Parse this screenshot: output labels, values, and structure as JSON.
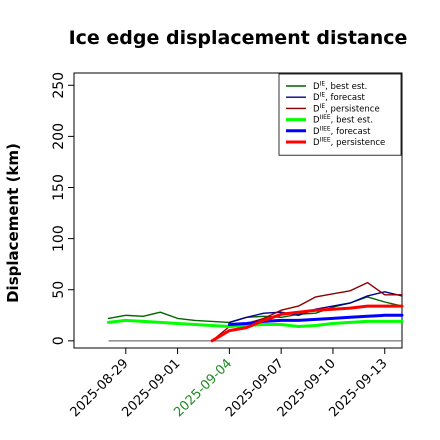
{
  "chart_data": {
    "type": "line",
    "title": "Ice edge displacement distance",
    "ylabel": "Displacement (km)",
    "xlabel": "",
    "ylim": [
      -7,
      262
    ],
    "yticks": [
      0,
      50,
      100,
      150,
      200,
      250
    ],
    "xdate_range": [
      "2025-08-26",
      "2025-09-14"
    ],
    "xticks": [
      {
        "label": "2025-08-29",
        "color": "#000000"
      },
      {
        "label": "2025-09-01",
        "color": "#000000"
      },
      {
        "label": "2025-09-04",
        "color": "#228b22"
      },
      {
        "label": "2025-09-07",
        "color": "#000000"
      },
      {
        "label": "2025-09-10",
        "color": "#000000"
      },
      {
        "label": "2025-09-13",
        "color": "#000000"
      }
    ],
    "grid": false,
    "legend_position": "top-right",
    "reference_line": {
      "y": 0,
      "x_start": "2025-08-28",
      "x_end": "2025-09-14",
      "color": "#555555"
    },
    "series": [
      {
        "name_main": "D",
        "name_sup": "IE",
        "name_rest": ", best est.",
        "color": "#006400",
        "width": 1.4,
        "x": [
          "2025-08-28",
          "2025-08-29",
          "2025-08-30",
          "2025-08-31",
          "2025-09-01",
          "2025-09-02",
          "2025-09-03",
          "2025-09-04",
          "2025-09-05",
          "2025-09-06",
          "2025-09-07",
          "2025-09-08",
          "2025-09-09",
          "2025-09-10",
          "2025-09-11",
          "2025-09-12",
          "2025-09-13",
          "2025-09-14"
        ],
        "y": [
          22,
          25,
          24,
          28,
          22,
          20,
          19,
          18,
          23,
          24,
          23,
          26,
          27,
          33,
          37,
          43,
          38,
          34
        ]
      },
      {
        "name_main": "D",
        "name_sup": "IE",
        "name_rest": ", forecast",
        "color": "#00008b",
        "width": 1.4,
        "x": [
          "2025-09-04",
          "2025-09-05",
          "2025-09-06",
          "2025-09-07",
          "2025-09-08",
          "2025-09-09",
          "2025-09-10",
          "2025-09-11",
          "2025-09-12",
          "2025-09-13",
          "2025-09-14"
        ],
        "y": [
          18,
          23,
          27,
          28,
          25,
          31,
          34,
          37,
          44,
          48,
          44
        ]
      },
      {
        "name_main": "D",
        "name_sup": "IE",
        "name_rest": ", persistence",
        "color": "#8b0000",
        "width": 1.4,
        "x": [
          "2025-09-03",
          "2025-09-04",
          "2025-09-05",
          "2025-09-06",
          "2025-09-07",
          "2025-09-08",
          "2025-09-09",
          "2025-09-10",
          "2025-09-11",
          "2025-09-12",
          "2025-09-13",
          "2025-09-14"
        ],
        "y": [
          0,
          14,
          17,
          22,
          30,
          34,
          43,
          46,
          49,
          57,
          45,
          45
        ]
      },
      {
        "name_main": "D",
        "name_sup": "IIEE",
        "name_rest": ", best est.",
        "color": "#00ff00",
        "width": 3,
        "x": [
          "2025-08-28",
          "2025-08-29",
          "2025-08-30",
          "2025-08-31",
          "2025-09-01",
          "2025-09-02",
          "2025-09-03",
          "2025-09-04",
          "2025-09-05",
          "2025-09-06",
          "2025-09-07",
          "2025-09-08",
          "2025-09-09",
          "2025-09-10",
          "2025-09-11",
          "2025-09-12",
          "2025-09-13",
          "2025-09-14"
        ],
        "y": [
          18,
          20,
          19,
          18,
          17,
          16,
          15,
          14,
          15,
          16,
          16,
          14,
          15,
          17,
          18,
          19,
          19,
          19
        ]
      },
      {
        "name_main": "D",
        "name_sup": "IIEE",
        "name_rest": ", forecast",
        "color": "#0000ff",
        "width": 3,
        "x": [
          "2025-09-04",
          "2025-09-05",
          "2025-09-06",
          "2025-09-07",
          "2025-09-08",
          "2025-09-09",
          "2025-09-10",
          "2025-09-11",
          "2025-09-12",
          "2025-09-13",
          "2025-09-14"
        ],
        "y": [
          16,
          17,
          19,
          20,
          20,
          21,
          22,
          23,
          24,
          25,
          25
        ]
      },
      {
        "name_main": "D",
        "name_sup": "IIEE",
        "name_rest": ", persistence",
        "color": "#ff0000",
        "width": 3,
        "x": [
          "2025-09-03",
          "2025-09-04",
          "2025-09-05",
          "2025-09-06",
          "2025-09-07",
          "2025-09-08",
          "2025-09-09",
          "2025-09-10",
          "2025-09-11",
          "2025-09-12",
          "2025-09-13",
          "2025-09-14"
        ],
        "y": [
          0,
          10,
          13,
          20,
          26,
          28,
          30,
          31,
          32,
          34,
          34,
          34
        ]
      }
    ]
  }
}
